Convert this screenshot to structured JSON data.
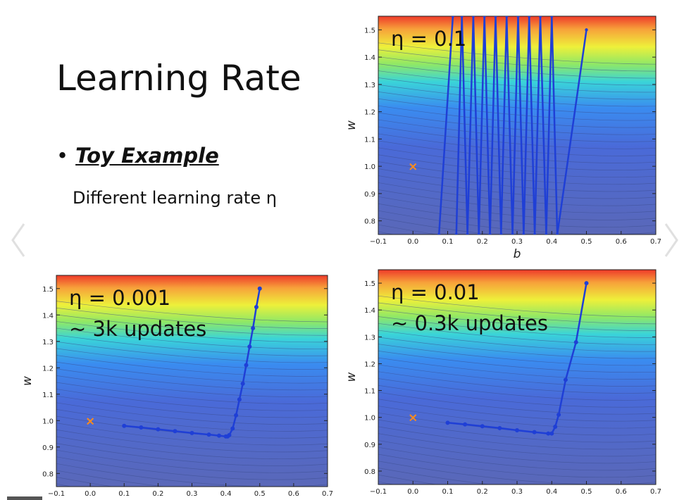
{
  "slide": {
    "title": "Learning Rate",
    "bullet_symbol": "•",
    "bullet_label": "Toy Example",
    "subtext": "Different learning rate η"
  },
  "nav": {
    "prev_icon": "chevron-left-icon",
    "next_icon": "chevron-right-icon"
  },
  "colors": {
    "path": "#1f3fd6",
    "marker": "#ff8c1a",
    "contour": "#3a4a8a"
  },
  "chart_data": [
    {
      "id": "top-right",
      "type": "line",
      "annotation_lines": [
        "η = 0.1"
      ],
      "xlabel": "b",
      "ylabel": "w",
      "xlim": [
        -0.1,
        0.7
      ],
      "ylim": [
        0.75,
        1.55
      ],
      "xticks": [
        "−0.1",
        "0.0",
        "0.1",
        "0.2",
        "0.3",
        "0.4",
        "0.5",
        "0.6",
        "0.7"
      ],
      "yticks": [
        "0.8",
        "0.9",
        "1.0",
        "1.1",
        "1.2",
        "1.3",
        "1.4",
        "1.5"
      ],
      "show_xticks": true,
      "show_xlabel": true,
      "target": {
        "x": 0.0,
        "y": 1.0
      },
      "series": [
        {
          "x": [
            0.5,
            0.416,
            0.4,
            0.384,
            0.367,
            0.351,
            0.335,
            0.319,
            0.303,
            0.287,
            0.27,
            0.254,
            0.238,
            0.222,
            0.206,
            0.19,
            0.174,
            0.157,
            0.141,
            0.125
          ],
          "y": [
            1.5,
            0.75,
            1.55,
            0.75,
            1.55,
            0.75,
            1.55,
            0.75,
            1.55,
            0.75,
            1.55,
            0.75,
            1.55,
            0.75,
            1.55,
            0.75,
            1.55,
            0.75,
            1.55,
            0.75
          ]
        },
        {
          "x": [
            0.075,
            0.115
          ],
          "y": [
            0.75,
            1.55
          ]
        }
      ]
    },
    {
      "id": "bottom-left",
      "type": "line",
      "annotation_lines": [
        "η = 0.001",
        "~ 3k updates"
      ],
      "xlabel": "",
      "ylabel": "w",
      "xlim": [
        -0.1,
        0.7
      ],
      "ylim": [
        0.75,
        1.55
      ],
      "xticks": [
        "−0.1",
        "0.0",
        "0.1",
        "0.2",
        "0.3",
        "0.4",
        "0.5",
        "0.6",
        "0.7"
      ],
      "yticks": [
        "0.8",
        "0.9",
        "1.0",
        "1.1",
        "1.2",
        "1.3",
        "1.4",
        "1.5"
      ],
      "show_xticks": true,
      "show_xlabel": false,
      "target": {
        "x": 0.0,
        "y": 1.0
      },
      "series": [
        {
          "x": [
            0.5,
            0.49,
            0.48,
            0.47,
            0.46,
            0.45,
            0.44,
            0.43,
            0.42,
            0.41,
            0.405,
            0.4,
            0.38,
            0.35,
            0.3,
            0.25,
            0.2,
            0.15,
            0.1
          ],
          "y": [
            1.5,
            1.43,
            1.35,
            1.28,
            1.21,
            1.14,
            1.08,
            1.02,
            0.97,
            0.945,
            0.94,
            0.94,
            0.943,
            0.947,
            0.953,
            0.96,
            0.967,
            0.974,
            0.98
          ]
        }
      ]
    },
    {
      "id": "bottom-right",
      "type": "line",
      "annotation_lines": [
        "η = 0.01",
        "~ 0.3k updates"
      ],
      "xlabel": "",
      "ylabel": "w",
      "xlim": [
        -0.1,
        0.7
      ],
      "ylim": [
        0.75,
        1.55
      ],
      "xticks": [
        "−0.1",
        "0.0",
        "0.1",
        "0.2",
        "0.3",
        "0.4",
        "0.5",
        "0.6",
        "0.7"
      ],
      "yticks": [
        "0.8",
        "0.9",
        "1.0",
        "1.1",
        "1.2",
        "1.3",
        "1.4",
        "1.5"
      ],
      "show_xticks": true,
      "show_xlabel": false,
      "target": {
        "x": 0.0,
        "y": 1.0
      },
      "series": [
        {
          "x": [
            0.5,
            0.47,
            0.44,
            0.42,
            0.41,
            0.4,
            0.39,
            0.35,
            0.3,
            0.25,
            0.2,
            0.15,
            0.1
          ],
          "y": [
            1.5,
            1.28,
            1.14,
            1.01,
            0.965,
            0.94,
            0.94,
            0.945,
            0.952,
            0.96,
            0.967,
            0.974,
            0.98
          ]
        }
      ]
    }
  ]
}
